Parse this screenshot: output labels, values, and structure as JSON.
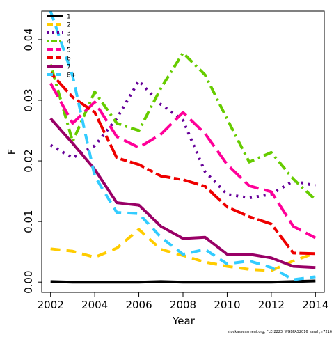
{
  "chart_data": {
    "type": "line",
    "title": "",
    "xlabel": "Year",
    "ylabel": "F",
    "xlim": [
      2001.6,
      2014.4
    ],
    "ylim": [
      -0.0017,
      0.0447
    ],
    "x_ticks": [
      2002,
      2004,
      2006,
      2008,
      2010,
      2012,
      2014
    ],
    "y_ticks": [
      0.0,
      0.01,
      0.02,
      0.03,
      0.04
    ],
    "y_tick_labels": [
      "0.00",
      "0.01",
      "0.02",
      "0.03",
      "0.04"
    ],
    "grid": false,
    "legend_position": "top-left",
    "x": [
      2002,
      2003,
      2004,
      2005,
      2006,
      2007,
      2008,
      2009,
      2010,
      2011,
      2012,
      2013,
      2014
    ],
    "series": [
      {
        "name": "1",
        "color": "#000000",
        "dash": "solid",
        "values": [
          0.0001,
          0.0,
          0.0,
          0.0,
          0.0,
          0.0001,
          0.0,
          0.0,
          0.0,
          0.0,
          0.0,
          0.0001,
          0.0002
        ]
      },
      {
        "name": "2",
        "color": "#FFCC00",
        "dash": "dashed",
        "values": [
          0.0055,
          0.0051,
          0.0041,
          0.0056,
          0.0087,
          0.0054,
          0.0044,
          0.0033,
          0.0026,
          0.0021,
          0.0019,
          0.0035,
          0.0048
        ]
      },
      {
        "name": "3",
        "color": "#660099",
        "dash": "dotted",
        "values": [
          0.0226,
          0.0205,
          0.0225,
          0.027,
          0.0332,
          0.0293,
          0.0267,
          0.0182,
          0.0145,
          0.0139,
          0.0145,
          0.0167,
          0.0159
        ]
      },
      {
        "name": "4",
        "color": "#66CC00",
        "dash": "dotdash",
        "values": [
          0.0359,
          0.0232,
          0.0314,
          0.0262,
          0.025,
          0.032,
          0.0378,
          0.0342,
          0.0269,
          0.0198,
          0.0214,
          0.017,
          0.0136
        ]
      },
      {
        "name": "5",
        "color": "#FF0099",
        "dash": "longdash",
        "values": [
          0.0328,
          0.0262,
          0.0297,
          0.024,
          0.0222,
          0.0244,
          0.028,
          0.0245,
          0.0194,
          0.0159,
          0.0149,
          0.0092,
          0.0073
        ]
      },
      {
        "name": "6",
        "color": "#EE0000",
        "dash": "twodash",
        "values": [
          0.0345,
          0.0305,
          0.028,
          0.0205,
          0.0194,
          0.0175,
          0.0169,
          0.0158,
          0.0124,
          0.0108,
          0.0096,
          0.0048,
          0.0047
        ]
      },
      {
        "name": "7",
        "color": "#990066",
        "dash": "solid",
        "values": [
          0.027,
          0.0229,
          0.0186,
          0.0131,
          0.0127,
          0.0092,
          0.0072,
          0.0074,
          0.0046,
          0.0046,
          0.004,
          0.0026,
          0.0024
        ]
      },
      {
        "name": "8+",
        "color": "#33CCFF",
        "dash": "dashed",
        "values": [
          0.0447,
          0.034,
          0.0175,
          0.0115,
          0.0113,
          0.0074,
          0.0046,
          0.0054,
          0.003,
          0.0035,
          0.0024,
          0.0004,
          0.0009
        ]
      }
    ],
    "footnote": "stockassessment.org, FLE-2223_WGBFAS2016_sarah, r7216"
  }
}
